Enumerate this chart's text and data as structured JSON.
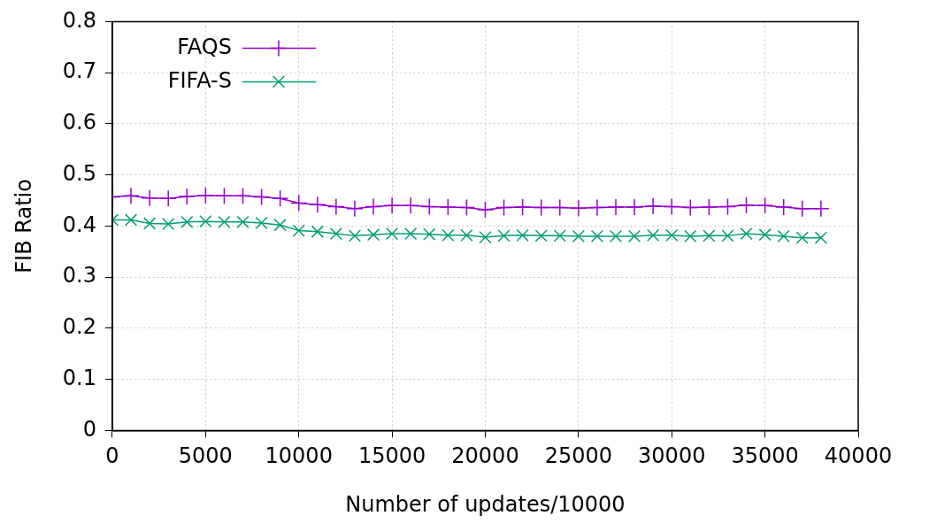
{
  "chart_data": {
    "type": "line",
    "xlabel": "Number of updates/10000",
    "ylabel": "FIB Ratio",
    "x": [
      0,
      1000,
      2000,
      3000,
      4000,
      5000,
      6000,
      7000,
      8000,
      9000,
      10000,
      11000,
      12000,
      13000,
      14000,
      15000,
      16000,
      17000,
      18000,
      19000,
      20000,
      21000,
      22000,
      23000,
      24000,
      25000,
      26000,
      27000,
      28000,
      29000,
      30000,
      31000,
      32000,
      33000,
      34000,
      35000,
      36000,
      37000,
      38000
    ],
    "series": [
      {
        "name": "FAQS",
        "color": "#9400d3",
        "values": [
          0.457,
          0.459,
          0.455,
          0.454,
          0.458,
          0.46,
          0.459,
          0.459,
          0.457,
          0.454,
          0.445,
          0.442,
          0.438,
          0.434,
          0.438,
          0.44,
          0.44,
          0.438,
          0.437,
          0.436,
          0.432,
          0.436,
          0.437,
          0.436,
          0.436,
          0.435,
          0.436,
          0.437,
          0.437,
          0.439,
          0.438,
          0.436,
          0.437,
          0.438,
          0.441,
          0.44,
          0.437,
          0.434,
          0.434
        ]
      },
      {
        "name": "FIFA-S",
        "color": "#009e73",
        "values": [
          0.412,
          0.412,
          0.405,
          0.404,
          0.408,
          0.409,
          0.408,
          0.408,
          0.406,
          0.402,
          0.391,
          0.389,
          0.385,
          0.381,
          0.383,
          0.385,
          0.385,
          0.384,
          0.382,
          0.382,
          0.378,
          0.381,
          0.382,
          0.381,
          0.381,
          0.38,
          0.38,
          0.38,
          0.38,
          0.382,
          0.382,
          0.38,
          0.381,
          0.381,
          0.385,
          0.383,
          0.38,
          0.377,
          0.377
        ]
      }
    ],
    "xlim": [
      0,
      40000
    ],
    "xticks": [
      0,
      5000,
      10000,
      15000,
      20000,
      25000,
      30000,
      35000,
      40000
    ],
    "ylim": [
      0,
      0.8
    ],
    "yticks": [
      0,
      0.1,
      0.2,
      0.3,
      0.4,
      0.5,
      0.6,
      0.7,
      0.8
    ],
    "grid": true,
    "legend": "top left",
    "marker": "cross",
    "line_style": "solid"
  }
}
